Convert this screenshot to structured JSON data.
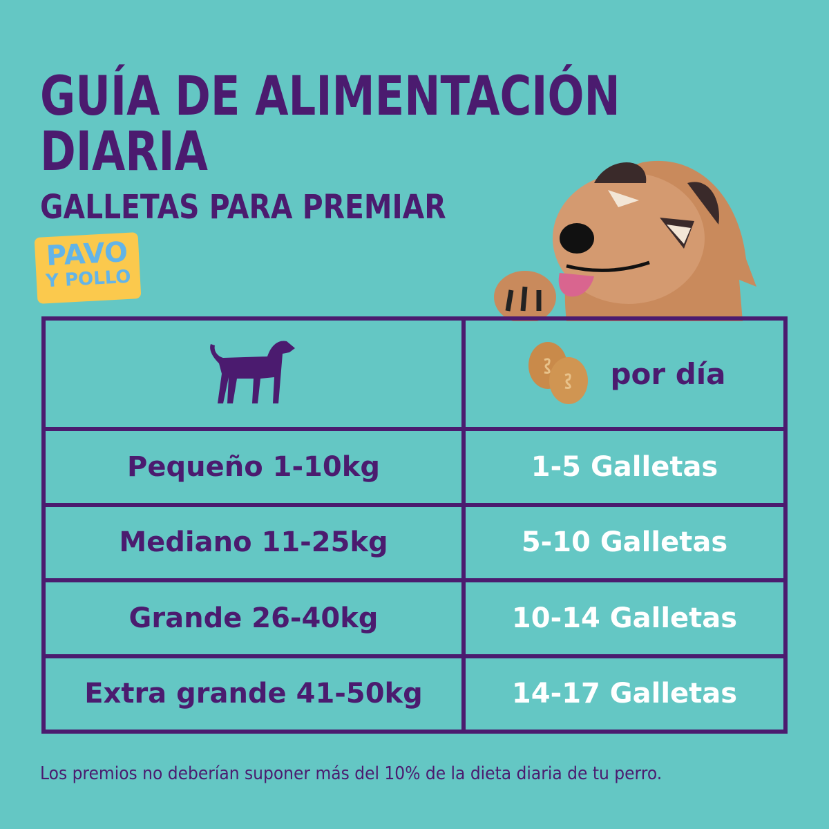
{
  "title": "GUÍA DE ALIMENTACIÓN DIARIA",
  "subtitle": "GALLETAS PARA PREMIAR",
  "badge": {
    "line1": "PAVO",
    "line2": "Y POLLO"
  },
  "table": {
    "header_right": "por día",
    "rows": [
      {
        "size": "Pequeño 1-10kg",
        "amount": "1-5 Galletas"
      },
      {
        "size": "Mediano 11-25kg",
        "amount": "5-10 Galletas"
      },
      {
        "size": "Grande 26-40kg",
        "amount": "10-14 Galletas"
      },
      {
        "size": "Extra grande 41-50kg",
        "amount": "14-17 Galletas"
      }
    ]
  },
  "footer": "Los premios no deberían suponer más del 10% de la dieta diaria de tu perro.",
  "colors": {
    "background": "#64c7c4",
    "purple": "#4b1b6f",
    "badge": "#fbc94d",
    "badge_text": "#63b4e8"
  }
}
